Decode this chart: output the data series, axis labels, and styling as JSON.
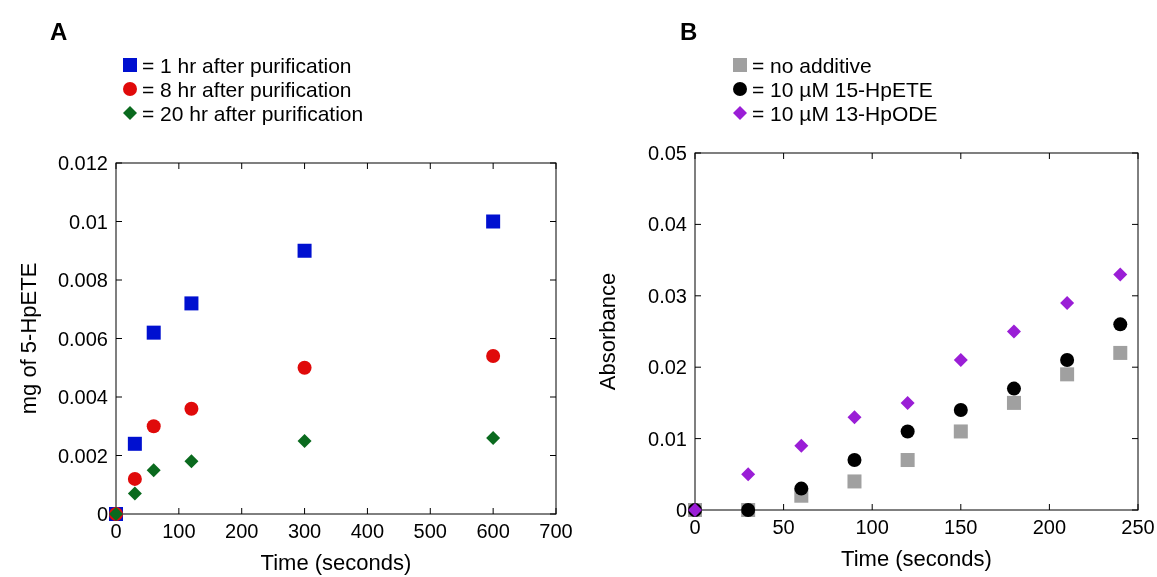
{
  "chart_data": [
    {
      "type": "scatter",
      "title": "A",
      "xlabel": "Time (seconds)",
      "ylabel": "mg of 5-HpETE",
      "x": [
        0,
        30,
        60,
        120,
        300,
        600
      ],
      "xlim": [
        0,
        700
      ],
      "xticks": [
        0,
        100,
        200,
        300,
        400,
        500,
        600,
        700
      ],
      "ylim": [
        0,
        0.012
      ],
      "yticks": [
        0,
        0.002,
        0.004,
        0.006,
        0.008,
        0.01,
        0.012
      ],
      "legend": "top",
      "grid": false,
      "series": [
        {
          "name": "= 1 hr after purification",
          "color": "#0010d0",
          "marker": "square",
          "values": [
            0,
            0.0024,
            0.0062,
            0.0072,
            0.009,
            0.01
          ]
        },
        {
          "name": "= 8 hr after purification",
          "color": "#e00a0a",
          "marker": "circle",
          "values": [
            0,
            0.0012,
            0.003,
            0.0036,
            0.005,
            0.0054
          ]
        },
        {
          "name": "= 20 hr after purification",
          "color": "#0a6a1e",
          "marker": "diamond",
          "values": [
            0,
            0.0007,
            0.0015,
            0.0018,
            0.0025,
            0.0026
          ]
        }
      ]
    },
    {
      "type": "scatter",
      "title": "B",
      "xlabel": "Time (seconds)",
      "ylabel": "Absorbance",
      "x": [
        0,
        30,
        60,
        90,
        120,
        150,
        180,
        210,
        240
      ],
      "xlim": [
        0,
        250
      ],
      "xticks": [
        0,
        50,
        100,
        150,
        200,
        250
      ],
      "ylim": [
        0,
        0.05
      ],
      "yticks": [
        0,
        0.01,
        0.02,
        0.03,
        0.04,
        0.05
      ],
      "legend": "top",
      "grid": false,
      "series": [
        {
          "name": "= no additive",
          "color": "#a0a0a0",
          "marker": "square",
          "values": [
            0,
            0,
            0.002,
            0.004,
            0.007,
            0.011,
            0.015,
            0.019,
            0.022
          ]
        },
        {
          "name": "= 10 µM 15-HpETE",
          "color": "#000000",
          "marker": "circle",
          "values": [
            0,
            0,
            0.003,
            0.007,
            0.011,
            0.014,
            0.017,
            0.021,
            0.026
          ]
        },
        {
          "name": "= 10 µM 13-HpODE",
          "color": "#9a1ed6",
          "marker": "diamond",
          "values": [
            0,
            0.005,
            0.009,
            0.013,
            0.015,
            0.021,
            0.025,
            0.029,
            0.033
          ]
        }
      ]
    }
  ]
}
